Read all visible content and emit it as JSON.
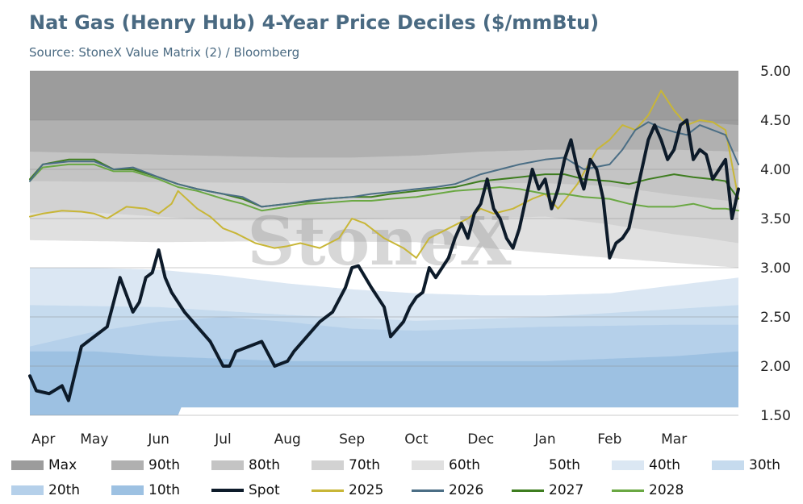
{
  "title": "Nat Gas (Henry Hub) 4-Year Price Deciles ($/mmBtu)",
  "subtitle": "Source: StoneX Value Matrix (2) / Bloomberg",
  "watermark": "StoneX",
  "chart_data": {
    "type": "area",
    "title": "Nat Gas (Henry Hub) 4-Year Price Deciles ($/mmBtu)",
    "categories": [
      "Apr",
      "May",
      "Jun",
      "Jul",
      "Aug",
      "Sep",
      "Oct",
      "Dec",
      "Jan",
      "Feb",
      "Mar"
    ],
    "y_ticks": [
      "5.00",
      "4.50",
      "4.00",
      "3.50",
      "3.00",
      "2.50",
      "2.00",
      "1.50"
    ],
    "ylim": [
      1.5,
      5.0
    ],
    "xlim": [
      0,
      11
    ],
    "y_axis_side": "right",
    "grid": true,
    "legend_position": "bottom",
    "colors": {
      "Max": "#9c9c9c",
      "90th": "#b0b0b0",
      "80th": "#c4c4c4",
      "70th": "#d2d2d2",
      "60th": "#e0e0e0",
      "50th": "#ffffff",
      "40th": "#dbe7f3",
      "30th": "#c6dbee",
      "20th": "#b5d0ea",
      "10th": "#9dc1e2",
      "Spot": "#0d1b2a",
      "2025": "#c8b637",
      "2026": "#4b6e85",
      "2027": "#3e7d1f",
      "2028": "#6aa843"
    },
    "bands": [
      {
        "name": "Max",
        "x": [
          0,
          11
        ],
        "values": [
          5.0,
          5.0
        ]
      },
      {
        "name": "90th",
        "x": [
          0,
          2,
          4,
          6,
          8,
          9,
          10,
          11
        ],
        "values": [
          4.5,
          4.5,
          4.5,
          4.5,
          4.5,
          4.5,
          4.5,
          4.45
        ]
      },
      {
        "name": "80th",
        "x": [
          0,
          2,
          4,
          5,
          6,
          7,
          8,
          9,
          10,
          11
        ],
        "values": [
          4.18,
          4.15,
          4.12,
          4.12,
          4.14,
          4.18,
          4.2,
          4.2,
          4.2,
          4.18
        ]
      },
      {
        "name": "70th",
        "x": [
          0,
          2,
          4,
          6,
          8,
          9,
          10,
          11
        ],
        "values": [
          3.88,
          3.87,
          3.86,
          3.86,
          3.86,
          3.83,
          3.74,
          3.67
        ]
      },
      {
        "name": "60th",
        "x": [
          0,
          1,
          2,
          3,
          4,
          6,
          7,
          8,
          9,
          10,
          10.5,
          11
        ],
        "values": [
          3.56,
          3.56,
          3.52,
          3.48,
          3.48,
          3.5,
          3.5,
          3.52,
          3.44,
          3.34,
          3.3,
          3.25
        ]
      },
      {
        "name": "50th",
        "x": [
          0,
          2,
          4,
          6,
          8,
          10,
          11
        ],
        "values": [
          3.28,
          3.26,
          3.27,
          3.26,
          3.15,
          3.05,
          3.0
        ]
      },
      {
        "name": "40th",
        "x": [
          0,
          1,
          2,
          3,
          4,
          5,
          6,
          7,
          8,
          9,
          10,
          11
        ],
        "values": [
          3.0,
          3.0,
          2.98,
          2.92,
          2.84,
          2.78,
          2.74,
          2.72,
          2.72,
          2.74,
          2.82,
          2.9
        ]
      },
      {
        "name": "30th",
        "x": [
          0,
          2,
          4,
          6,
          8,
          10,
          11
        ],
        "values": [
          2.62,
          2.6,
          2.52,
          2.46,
          2.5,
          2.58,
          2.62
        ]
      },
      {
        "name": "20th",
        "x": [
          0,
          1,
          2,
          3,
          4,
          5,
          6,
          7,
          8,
          10,
          11
        ],
        "values": [
          2.2,
          2.35,
          2.45,
          2.5,
          2.45,
          2.38,
          2.36,
          2.38,
          2.4,
          2.42,
          2.42
        ]
      },
      {
        "name": "10th",
        "x": [
          0,
          1,
          2,
          4,
          6,
          8,
          10,
          11
        ],
        "values": [
          2.15,
          2.15,
          2.1,
          2.05,
          2.05,
          2.05,
          2.1,
          2.15
        ]
      },
      {
        "name": "Min",
        "x": [
          0,
          2.3,
          2.32,
          11
        ],
        "values": [
          1.5,
          1.5,
          1.58,
          1.58
        ]
      }
    ],
    "series": [
      {
        "name": "2025",
        "x": [
          0,
          0.2,
          0.5,
          0.8,
          1.0,
          1.2,
          1.5,
          1.8,
          2.0,
          2.2,
          2.3,
          2.4,
          2.6,
          2.8,
          3.0,
          3.2,
          3.5,
          3.8,
          4.0,
          4.2,
          4.5,
          4.8,
          5.0,
          5.2,
          5.5,
          5.8,
          6.0,
          6.2,
          6.5,
          6.8,
          7.0,
          7.2,
          7.5,
          7.8,
          8.0,
          8.2,
          8.5,
          8.8,
          9.0,
          9.2,
          9.4,
          9.6,
          9.8,
          10.0,
          10.2,
          10.4,
          10.6,
          10.8,
          11.0
        ],
        "values": [
          3.52,
          3.55,
          3.58,
          3.57,
          3.55,
          3.5,
          3.62,
          3.6,
          3.55,
          3.65,
          3.78,
          3.72,
          3.6,
          3.52,
          3.4,
          3.35,
          3.25,
          3.2,
          3.22,
          3.25,
          3.2,
          3.3,
          3.5,
          3.45,
          3.3,
          3.2,
          3.1,
          3.3,
          3.4,
          3.5,
          3.6,
          3.55,
          3.6,
          3.7,
          3.75,
          3.6,
          3.85,
          4.2,
          4.3,
          4.45,
          4.4,
          4.55,
          4.8,
          4.6,
          4.45,
          4.5,
          4.48,
          4.4,
          3.7
        ]
      },
      {
        "name": "2026",
        "x": [
          0,
          0.2,
          0.6,
          1.0,
          1.3,
          1.6,
          2.0,
          2.3,
          2.6,
          3.0,
          3.3,
          3.6,
          4.0,
          4.3,
          4.6,
          5.0,
          5.3,
          5.6,
          6.0,
          6.3,
          6.6,
          7.0,
          7.3,
          7.6,
          8.0,
          8.3,
          8.6,
          9.0,
          9.2,
          9.4,
          9.6,
          9.8,
          10.0,
          10.2,
          10.4,
          10.6,
          10.8,
          11.0
        ],
        "values": [
          3.88,
          4.05,
          4.08,
          4.08,
          4.0,
          4.02,
          3.92,
          3.85,
          3.8,
          3.75,
          3.72,
          3.62,
          3.65,
          3.68,
          3.7,
          3.72,
          3.75,
          3.77,
          3.8,
          3.82,
          3.85,
          3.95,
          4.0,
          4.05,
          4.1,
          4.12,
          4.0,
          4.05,
          4.2,
          4.4,
          4.48,
          4.42,
          4.38,
          4.35,
          4.45,
          4.4,
          4.35,
          4.05
        ]
      },
      {
        "name": "2027",
        "x": [
          0,
          0.2,
          0.6,
          1.0,
          1.3,
          1.6,
          2.0,
          2.3,
          2.6,
          3.0,
          3.3,
          3.6,
          4.0,
          4.3,
          4.6,
          5.0,
          5.3,
          5.6,
          6.0,
          6.3,
          6.6,
          7.0,
          7.3,
          7.6,
          8.0,
          8.3,
          8.6,
          9.0,
          9.3,
          9.6,
          10.0,
          10.3,
          10.6,
          10.8,
          11.0
        ],
        "values": [
          3.9,
          4.05,
          4.1,
          4.1,
          4.0,
          4.0,
          3.92,
          3.85,
          3.8,
          3.75,
          3.7,
          3.62,
          3.65,
          3.67,
          3.7,
          3.72,
          3.72,
          3.75,
          3.78,
          3.8,
          3.82,
          3.88,
          3.9,
          3.92,
          3.95,
          3.95,
          3.9,
          3.88,
          3.85,
          3.9,
          3.95,
          3.92,
          3.9,
          3.88,
          3.7
        ]
      },
      {
        "name": "2028",
        "x": [
          0,
          0.2,
          0.6,
          1.0,
          1.3,
          1.6,
          2.0,
          2.3,
          2.6,
          3.0,
          3.3,
          3.6,
          4.0,
          4.3,
          4.6,
          5.0,
          5.3,
          5.6,
          6.0,
          6.3,
          6.6,
          7.0,
          7.3,
          7.6,
          8.0,
          8.3,
          8.6,
          9.0,
          9.3,
          9.6,
          10.0,
          10.3,
          10.6,
          10.8,
          11.0
        ],
        "values": [
          3.88,
          4.02,
          4.05,
          4.05,
          3.98,
          3.98,
          3.9,
          3.82,
          3.78,
          3.7,
          3.65,
          3.58,
          3.62,
          3.65,
          3.66,
          3.68,
          3.68,
          3.7,
          3.72,
          3.75,
          3.78,
          3.8,
          3.82,
          3.8,
          3.75,
          3.75,
          3.72,
          3.7,
          3.65,
          3.62,
          3.62,
          3.65,
          3.6,
          3.6,
          3.58
        ]
      },
      {
        "name": "Spot",
        "x": [
          0,
          0.1,
          0.3,
          0.5,
          0.6,
          0.8,
          0.9,
          1.0,
          1.2,
          1.3,
          1.4,
          1.6,
          1.7,
          1.8,
          1.9,
          2.0,
          2.1,
          2.2,
          2.4,
          2.6,
          2.8,
          3.0,
          3.1,
          3.2,
          3.4,
          3.6,
          3.8,
          4.0,
          4.1,
          4.3,
          4.5,
          4.7,
          4.9,
          5.0,
          5.1,
          5.3,
          5.5,
          5.6,
          5.8,
          5.9,
          6.0,
          6.1,
          6.2,
          6.3,
          6.5,
          6.6,
          6.7,
          6.8,
          6.9,
          7.0,
          7.1,
          7.2,
          7.3,
          7.4,
          7.5,
          7.6,
          7.7,
          7.8,
          7.9,
          8.0,
          8.1,
          8.2,
          8.3,
          8.4,
          8.5,
          8.6,
          8.7,
          8.8,
          8.9,
          9.0,
          9.1,
          9.2,
          9.3,
          9.4,
          9.5,
          9.6,
          9.7,
          9.8,
          9.9,
          10.0,
          10.1,
          10.2,
          10.3,
          10.4,
          10.5,
          10.6,
          10.7,
          10.8,
          10.9,
          11.0
        ],
        "values": [
          1.9,
          1.75,
          1.72,
          1.8,
          1.65,
          2.2,
          2.25,
          2.3,
          2.4,
          2.65,
          2.9,
          2.55,
          2.65,
          2.9,
          2.95,
          3.18,
          2.9,
          2.75,
          2.55,
          2.4,
          2.25,
          2.0,
          2.0,
          2.15,
          2.2,
          2.25,
          2.0,
          2.05,
          2.15,
          2.3,
          2.45,
          2.55,
          2.8,
          3.0,
          3.02,
          2.8,
          2.6,
          2.3,
          2.45,
          2.6,
          2.7,
          2.75,
          3.0,
          2.9,
          3.1,
          3.3,
          3.45,
          3.3,
          3.55,
          3.65,
          3.9,
          3.6,
          3.5,
          3.3,
          3.2,
          3.4,
          3.7,
          4.0,
          3.8,
          3.9,
          3.6,
          3.8,
          4.1,
          4.3,
          4.0,
          3.8,
          4.1,
          4.0,
          3.7,
          3.1,
          3.25,
          3.3,
          3.4,
          3.7,
          4.0,
          4.3,
          4.45,
          4.3,
          4.1,
          4.2,
          4.45,
          4.5,
          4.1,
          4.2,
          4.15,
          3.9,
          4.0,
          4.1,
          3.5,
          3.8
        ]
      }
    ],
    "legend": [
      "Max",
      "90th",
      "80th",
      "70th",
      "60th",
      "50th",
      "40th",
      "30th",
      "20th",
      "10th",
      "Spot",
      "2025",
      "2026",
      "2027",
      "2028"
    ]
  }
}
